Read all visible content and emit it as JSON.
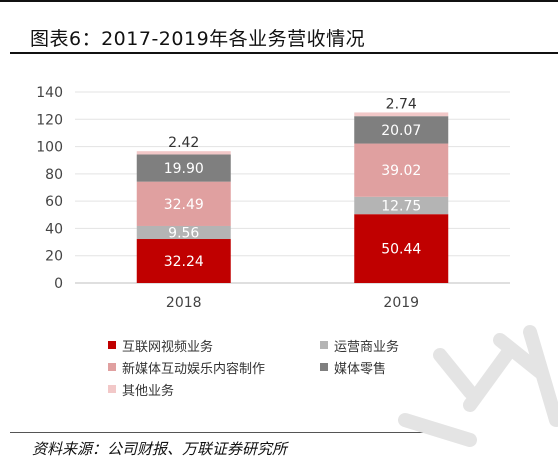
{
  "figure": {
    "title": "图表6：2017-2019年各业务营收情况",
    "source": "资料来源：公司财报、万联证券研究所"
  },
  "chart_data": {
    "type": "bar",
    "stacked": true,
    "categories": [
      "2018",
      "2019"
    ],
    "series": [
      {
        "name": "互联网视频业务",
        "values": [
          32.24,
          50.44
        ],
        "color": "#c00000"
      },
      {
        "name": "运营商业务",
        "values": [
          9.56,
          12.75
        ],
        "color": "#b4b4b4"
      },
      {
        "name": "新媒体互动娱乐内容制作",
        "values": [
          32.49,
          39.02
        ],
        "color": "#e0a0a0"
      },
      {
        "name": "媒体零售",
        "values": [
          19.9,
          20.07
        ],
        "color": "#7f7f7f"
      },
      {
        "name": "其他业务",
        "values": [
          2.42,
          2.74
        ],
        "color": "#f2c8c8"
      }
    ],
    "value_labels": [
      [
        "32.24",
        "50.44"
      ],
      [
        "9.56",
        "12.75"
      ],
      [
        "32.49",
        "39.02"
      ],
      [
        "19.90",
        "20.07"
      ],
      [
        "2.42",
        "2.74"
      ]
    ],
    "yticks": [
      "0",
      "20",
      "40",
      "60",
      "80",
      "100",
      "120",
      "140"
    ],
    "ylim": [
      0,
      140
    ],
    "grid": true,
    "legend_position": "bottom"
  }
}
